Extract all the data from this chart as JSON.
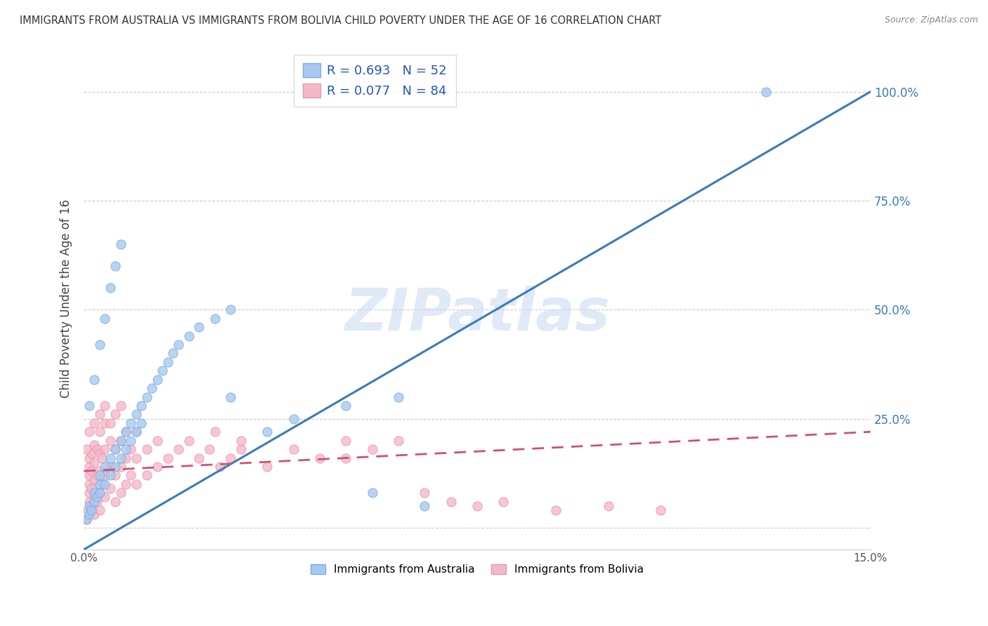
{
  "title": "IMMIGRANTS FROM AUSTRALIA VS IMMIGRANTS FROM BOLIVIA CHILD POVERTY UNDER THE AGE OF 16 CORRELATION CHART",
  "source": "Source: ZipAtlas.com",
  "ylabel": "Child Poverty Under the Age of 16",
  "xlim": [
    0.0,
    0.15
  ],
  "ylim": [
    -0.05,
    1.1
  ],
  "xticks": [
    0.0,
    0.15
  ],
  "xticklabels": [
    "0.0%",
    "15.0%"
  ],
  "yticks_right": [
    0.25,
    0.5,
    0.75,
    1.0
  ],
  "yticklabels_right": [
    "25.0%",
    "50.0%",
    "75.0%",
    "100.0%"
  ],
  "grid_yticks": [
    0.0,
    0.25,
    0.5,
    0.75,
    1.0
  ],
  "australia_color": "#a8c8f0",
  "australia_edge": "#7aaee0",
  "bolivia_color": "#f5b8c8",
  "bolivia_edge": "#e898b0",
  "legend_australia": "Immigrants from Australia",
  "legend_bolivia": "Immigrants from Bolivia",
  "r_australia": 0.693,
  "n_australia": 52,
  "r_bolivia": 0.077,
  "n_bolivia": 84,
  "trend_australia_color": "#3a7abf",
  "trend_bolivia_color": "#d05070",
  "watermark": "ZIPatlas",
  "aus_trend_x0": 0.0,
  "aus_trend_y0": -0.05,
  "aus_trend_x1": 0.15,
  "aus_trend_y1": 1.0,
  "bol_trend_x0": 0.0,
  "bol_trend_y0": 0.13,
  "bol_trend_x1": 0.15,
  "bol_trend_y1": 0.22,
  "australia_scatter": [
    [
      0.0005,
      0.02
    ],
    [
      0.001,
      0.03
    ],
    [
      0.001,
      0.05
    ],
    [
      0.0015,
      0.04
    ],
    [
      0.002,
      0.06
    ],
    [
      0.002,
      0.08
    ],
    [
      0.0025,
      0.07
    ],
    [
      0.003,
      0.1
    ],
    [
      0.003,
      0.12
    ],
    [
      0.003,
      0.08
    ],
    [
      0.004,
      0.14
    ],
    [
      0.004,
      0.1
    ],
    [
      0.005,
      0.16
    ],
    [
      0.005,
      0.12
    ],
    [
      0.006,
      0.18
    ],
    [
      0.006,
      0.14
    ],
    [
      0.007,
      0.2
    ],
    [
      0.007,
      0.16
    ],
    [
      0.008,
      0.22
    ],
    [
      0.008,
      0.18
    ],
    [
      0.009,
      0.24
    ],
    [
      0.009,
      0.2
    ],
    [
      0.01,
      0.26
    ],
    [
      0.01,
      0.22
    ],
    [
      0.011,
      0.28
    ],
    [
      0.011,
      0.24
    ],
    [
      0.012,
      0.3
    ],
    [
      0.013,
      0.32
    ],
    [
      0.014,
      0.34
    ],
    [
      0.015,
      0.36
    ],
    [
      0.016,
      0.38
    ],
    [
      0.017,
      0.4
    ],
    [
      0.018,
      0.42
    ],
    [
      0.02,
      0.44
    ],
    [
      0.022,
      0.46
    ],
    [
      0.025,
      0.48
    ],
    [
      0.028,
      0.5
    ],
    [
      0.001,
      0.28
    ],
    [
      0.002,
      0.34
    ],
    [
      0.003,
      0.42
    ],
    [
      0.004,
      0.48
    ],
    [
      0.005,
      0.55
    ],
    [
      0.006,
      0.6
    ],
    [
      0.007,
      0.65
    ],
    [
      0.04,
      0.25
    ],
    [
      0.05,
      0.28
    ],
    [
      0.06,
      0.3
    ],
    [
      0.035,
      0.22
    ],
    [
      0.028,
      0.3
    ],
    [
      0.055,
      0.08
    ],
    [
      0.065,
      0.05
    ],
    [
      0.13,
      1.0
    ]
  ],
  "bolivia_scatter": [
    [
      0.0005,
      0.02
    ],
    [
      0.0008,
      0.04
    ],
    [
      0.001,
      0.06
    ],
    [
      0.001,
      0.08
    ],
    [
      0.001,
      0.1
    ],
    [
      0.001,
      0.12
    ],
    [
      0.001,
      0.14
    ],
    [
      0.001,
      0.16
    ],
    [
      0.0015,
      0.05
    ],
    [
      0.0015,
      0.09
    ],
    [
      0.0015,
      0.13
    ],
    [
      0.0015,
      0.17
    ],
    [
      0.002,
      0.03
    ],
    [
      0.002,
      0.07
    ],
    [
      0.002,
      0.11
    ],
    [
      0.002,
      0.15
    ],
    [
      0.002,
      0.19
    ],
    [
      0.0025,
      0.06
    ],
    [
      0.0025,
      0.12
    ],
    [
      0.0025,
      0.18
    ],
    [
      0.003,
      0.04
    ],
    [
      0.003,
      0.08
    ],
    [
      0.003,
      0.13
    ],
    [
      0.003,
      0.17
    ],
    [
      0.003,
      0.22
    ],
    [
      0.0035,
      0.1
    ],
    [
      0.0035,
      0.16
    ],
    [
      0.004,
      0.07
    ],
    [
      0.004,
      0.12
    ],
    [
      0.004,
      0.18
    ],
    [
      0.004,
      0.24
    ],
    [
      0.005,
      0.09
    ],
    [
      0.005,
      0.14
    ],
    [
      0.005,
      0.2
    ],
    [
      0.006,
      0.06
    ],
    [
      0.006,
      0.12
    ],
    [
      0.006,
      0.18
    ],
    [
      0.007,
      0.08
    ],
    [
      0.007,
      0.14
    ],
    [
      0.007,
      0.2
    ],
    [
      0.008,
      0.1
    ],
    [
      0.008,
      0.16
    ],
    [
      0.008,
      0.22
    ],
    [
      0.009,
      0.12
    ],
    [
      0.009,
      0.18
    ],
    [
      0.01,
      0.1
    ],
    [
      0.01,
      0.16
    ],
    [
      0.01,
      0.22
    ],
    [
      0.012,
      0.12
    ],
    [
      0.012,
      0.18
    ],
    [
      0.014,
      0.14
    ],
    [
      0.014,
      0.2
    ],
    [
      0.016,
      0.16
    ],
    [
      0.018,
      0.18
    ],
    [
      0.02,
      0.2
    ],
    [
      0.022,
      0.16
    ],
    [
      0.024,
      0.18
    ],
    [
      0.026,
      0.14
    ],
    [
      0.028,
      0.16
    ],
    [
      0.03,
      0.18
    ],
    [
      0.035,
      0.14
    ],
    [
      0.04,
      0.18
    ],
    [
      0.045,
      0.16
    ],
    [
      0.05,
      0.2
    ],
    [
      0.055,
      0.18
    ],
    [
      0.06,
      0.2
    ],
    [
      0.003,
      0.26
    ],
    [
      0.004,
      0.28
    ],
    [
      0.005,
      0.24
    ],
    [
      0.006,
      0.26
    ],
    [
      0.007,
      0.28
    ],
    [
      0.025,
      0.22
    ],
    [
      0.03,
      0.2
    ],
    [
      0.001,
      0.22
    ],
    [
      0.002,
      0.24
    ],
    [
      0.0005,
      0.18
    ],
    [
      0.05,
      0.16
    ],
    [
      0.065,
      0.08
    ],
    [
      0.07,
      0.06
    ],
    [
      0.075,
      0.05
    ],
    [
      0.08,
      0.06
    ],
    [
      0.09,
      0.04
    ],
    [
      0.1,
      0.05
    ],
    [
      0.11,
      0.04
    ]
  ]
}
